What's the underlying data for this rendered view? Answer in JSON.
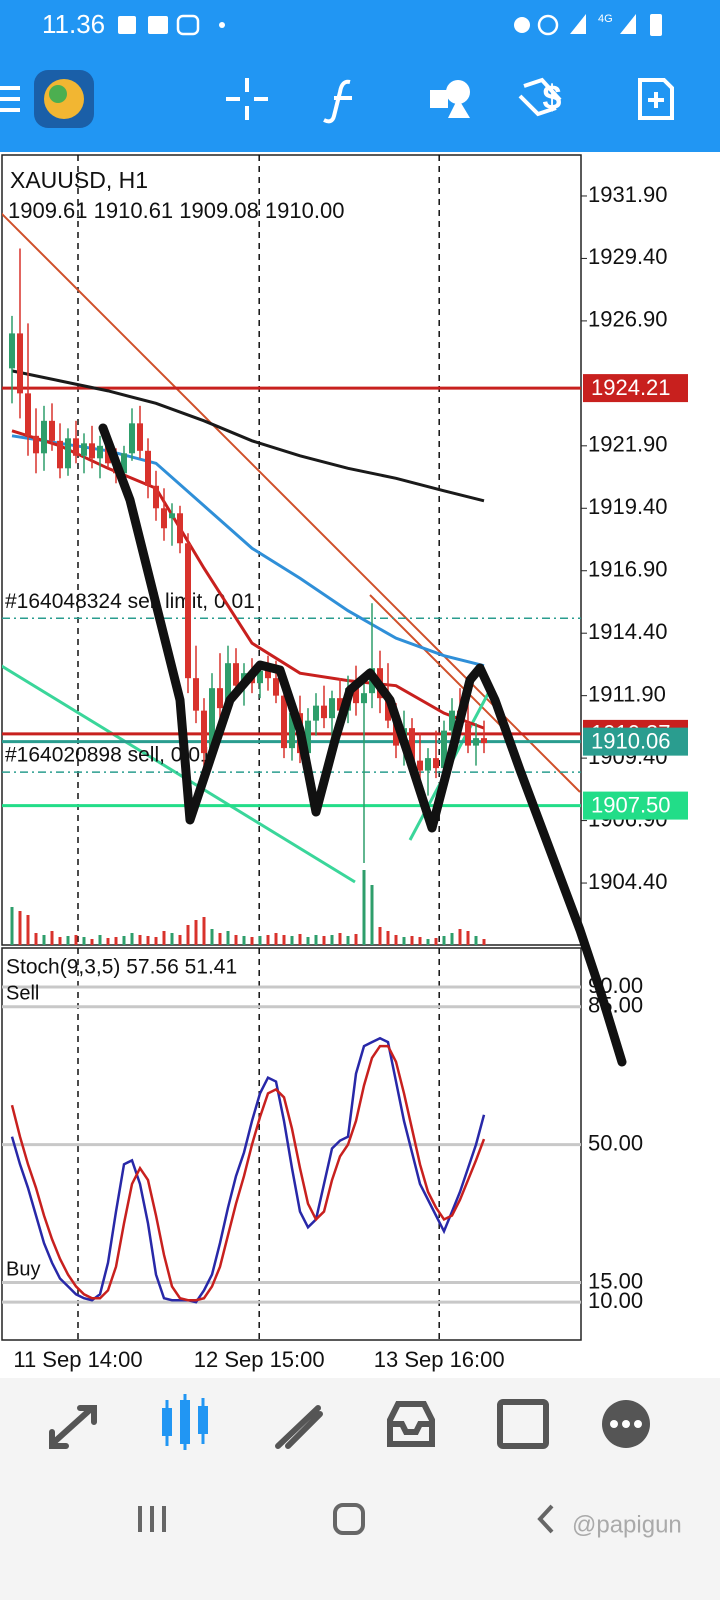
{
  "status_bar": {
    "time": "11.36",
    "network": "4G"
  },
  "chart": {
    "symbol": "XAUUSD, H1",
    "ohlc": "1909.61 1910.61 1909.08 1910.00",
    "up_color": "#2e9e6b",
    "down_color": "#d8322c",
    "candles": [
      [
        1925.0,
        1927.1,
        1923.6,
        1926.4
      ],
      [
        1926.4,
        1929.8,
        1923.0,
        1924.0
      ],
      [
        1924.0,
        1926.8,
        1921.5,
        1922.3
      ],
      [
        1922.3,
        1923.4,
        1920.8,
        1921.6
      ],
      [
        1921.6,
        1923.5,
        1920.9,
        1922.9
      ],
      [
        1922.9,
        1923.6,
        1921.7,
        1922.1
      ],
      [
        1922.1,
        1922.8,
        1920.6,
        1921.0
      ],
      [
        1921.0,
        1922.6,
        1920.7,
        1922.2
      ],
      [
        1922.2,
        1922.9,
        1921.2,
        1921.5
      ],
      [
        1921.5,
        1922.4,
        1920.8,
        1922.0
      ],
      [
        1922.0,
        1922.7,
        1921.0,
        1921.4
      ],
      [
        1921.4,
        1922.3,
        1920.6,
        1921.9
      ],
      [
        1921.9,
        1922.5,
        1921.0,
        1921.2
      ],
      [
        1921.2,
        1921.8,
        1920.4,
        1920.8
      ],
      [
        1920.8,
        1921.9,
        1920.3,
        1921.6
      ],
      [
        1921.6,
        1923.4,
        1921.3,
        1922.8
      ],
      [
        1922.8,
        1923.5,
        1921.4,
        1921.7
      ],
      [
        1921.7,
        1922.2,
        1919.8,
        1920.3
      ],
      [
        1920.3,
        1920.9,
        1918.9,
        1919.4
      ],
      [
        1919.4,
        1920.2,
        1918.1,
        1918.6
      ],
      [
        1919.0,
        1919.6,
        1917.9,
        1919.2
      ],
      [
        1919.2,
        1919.5,
        1917.6,
        1918.0
      ],
      [
        1918.0,
        1918.4,
        1912.0,
        1912.6
      ],
      [
        1912.6,
        1913.9,
        1910.8,
        1911.3
      ],
      [
        1911.3,
        1911.8,
        1908.4,
        1909.6
      ],
      [
        1909.6,
        1912.8,
        1909.2,
        1912.2
      ],
      [
        1912.2,
        1913.6,
        1910.9,
        1911.4
      ],
      [
        1911.4,
        1913.9,
        1911.0,
        1913.2
      ],
      [
        1913.2,
        1913.8,
        1911.9,
        1912.3
      ],
      [
        1912.3,
        1913.2,
        1911.5,
        1912.8
      ],
      [
        1912.8,
        1913.4,
        1912.0,
        1912.4
      ],
      [
        1912.4,
        1913.1,
        1911.8,
        1912.9
      ],
      [
        1912.9,
        1913.5,
        1912.1,
        1912.6
      ],
      [
        1912.6,
        1913.3,
        1911.6,
        1911.9
      ],
      [
        1911.9,
        1912.5,
        1909.4,
        1909.8
      ],
      [
        1909.8,
        1911.7,
        1909.3,
        1911.2
      ],
      [
        1911.2,
        1911.9,
        1909.2,
        1909.6
      ],
      [
        1909.6,
        1911.4,
        1909.1,
        1910.9
      ],
      [
        1910.9,
        1912.0,
        1910.3,
        1911.5
      ],
      [
        1911.5,
        1912.3,
        1910.6,
        1911.0
      ],
      [
        1911.0,
        1912.1,
        1910.1,
        1911.8
      ],
      [
        1911.8,
        1912.6,
        1910.9,
        1911.3
      ],
      [
        1911.3,
        1912.7,
        1910.8,
        1912.2
      ],
      [
        1912.2,
        1913.1,
        1911.1,
        1911.6
      ],
      [
        1911.6,
        1912.4,
        1905.2,
        1912.0
      ],
      [
        1912.0,
        1915.6,
        1911.4,
        1913.0
      ],
      [
        1913.0,
        1913.7,
        1911.2,
        1911.8
      ],
      [
        1911.8,
        1913.2,
        1910.6,
        1910.9
      ],
      [
        1910.9,
        1911.6,
        1909.4,
        1909.9
      ],
      [
        1909.9,
        1911.3,
        1909.1,
        1910.6
      ],
      [
        1910.6,
        1911.0,
        1908.8,
        1909.3
      ],
      [
        1909.3,
        1910.4,
        1908.2,
        1908.9
      ],
      [
        1908.9,
        1909.8,
        1907.9,
        1909.4
      ],
      [
        1909.4,
        1910.5,
        1908.6,
        1909.0
      ],
      [
        1909.0,
        1910.9,
        1908.8,
        1910.5
      ],
      [
        1910.5,
        1911.8,
        1910.0,
        1911.3
      ],
      [
        1911.3,
        1912.2,
        1910.4,
        1910.8
      ],
      [
        1910.8,
        1911.6,
        1909.6,
        1909.9
      ],
      [
        1909.9,
        1910.8,
        1909.1,
        1910.2
      ],
      [
        1910.2,
        1910.9,
        1909.6,
        1910.0
      ]
    ],
    "volumes": [
      38,
      34,
      30,
      12,
      10,
      14,
      8,
      9,
      10,
      8,
      6,
      10,
      7,
      8,
      9,
      12,
      10,
      9,
      8,
      14,
      12,
      10,
      20,
      25,
      28,
      16,
      12,
      14,
      10,
      9,
      8,
      9,
      10,
      12,
      10,
      9,
      11,
      8,
      10,
      9,
      10,
      12,
      9,
      11,
      75,
      60,
      18,
      14,
      10,
      8,
      9,
      8,
      6,
      7,
      9,
      12,
      16,
      14,
      9,
      6
    ],
    "moving_averages": [
      {
        "color": "#1a1a1a",
        "x": [
          0,
          6,
          12,
          18,
          24,
          30,
          36,
          42,
          48,
          54,
          59
        ],
        "values": [
          1924.9,
          1924.5,
          1924.1,
          1923.6,
          1922.9,
          1922.1,
          1921.5,
          1921.0,
          1920.6,
          1920.1,
          1919.7
        ]
      },
      {
        "color": "#2f8fd8",
        "x": [
          0,
          6,
          12,
          18,
          24,
          30,
          36,
          42,
          48,
          54,
          59
        ],
        "values": [
          1922.3,
          1922.0,
          1921.7,
          1921.2,
          1919.5,
          1917.8,
          1916.6,
          1915.3,
          1914.2,
          1913.5,
          1913.1
        ]
      },
      {
        "color": "#c8201e",
        "x": [
          0,
          6,
          12,
          18,
          24,
          30,
          36,
          42,
          48,
          54,
          59
        ],
        "values": [
          1922.5,
          1921.9,
          1921.0,
          1920.2,
          1917.0,
          1914.0,
          1912.8,
          1912.5,
          1912.3,
          1911.2,
          1910.6
        ]
      }
    ],
    "ylim": [
      1901.92,
      1933.54
    ],
    "yticks": [
      {
        "value": 1931.9,
        "label": "1931.90"
      },
      {
        "value": 1929.4,
        "label": "1929.40"
      },
      {
        "value": 1926.9,
        "label": "1926.90"
      },
      {
        "value": 1921.9,
        "label": "1921.90"
      },
      {
        "value": 1919.4,
        "label": "1919.40"
      },
      {
        "value": 1916.9,
        "label": "1916.90"
      },
      {
        "value": 1914.4,
        "label": "1914.40"
      },
      {
        "value": 1911.9,
        "label": "1911.90"
      },
      {
        "value": 1909.4,
        "label": "1909.40"
      },
      {
        "value": 1906.9,
        "label": "1906.90"
      },
      {
        "value": 1904.4,
        "label": "1904.40"
      }
    ],
    "price_lines": [
      {
        "value": 1924.21,
        "label": "1924.21",
        "color": "#c8201e"
      },
      {
        "value": 1910.37,
        "label": "1910.37",
        "color": "#c8201e"
      },
      {
        "value": 1910.06,
        "label": "1910.06",
        "color": "#2a9d8f"
      },
      {
        "value": 1907.5,
        "label": "1907.50",
        "color": "#22dd88"
      }
    ],
    "orders": [
      {
        "value": 1915.0,
        "label": "#164048324 sell limit, 0.01"
      },
      {
        "value": 1908.84,
        "label": "#164020898 sell, 0.01"
      }
    ],
    "xticks": [
      {
        "value": 8.25,
        "label": "11 Sep 14:00"
      },
      {
        "value": 30.9,
        "label": "12 Sep 15:00"
      },
      {
        "value": 53.4,
        "label": "13 Sep 16:00"
      }
    ]
  },
  "stochastic": {
    "label": "Stoch(9,3,5) 57.56 51.41",
    "sell_label": "Sell",
    "buy_label": "Buy",
    "ylim": [
      0.4,
      99.9
    ],
    "yticks": [
      {
        "value": 90,
        "label": "90.00"
      },
      {
        "value": 85,
        "label": "85.00"
      },
      {
        "value": 50,
        "label": "50.00"
      },
      {
        "value": 15,
        "label": "15.00"
      },
      {
        "value": 10,
        "label": "10.00"
      }
    ],
    "k": {
      "color": "#2828a8",
      "values": [
        52,
        45,
        39,
        32,
        25,
        20,
        16,
        14,
        12,
        11,
        10.5,
        12,
        20,
        33,
        45,
        46,
        40,
        30,
        17,
        11,
        10.5,
        10.5,
        10.5,
        10,
        13,
        17,
        25,
        34,
        42,
        48,
        56,
        63,
        67,
        66,
        56,
        44,
        33,
        29,
        31,
        40,
        49,
        51,
        52,
        68,
        75,
        76,
        77,
        76,
        66,
        56,
        48,
        40,
        36,
        32,
        28,
        33,
        38,
        44,
        50,
        57.56
      ]
    },
    "d": {
      "color": "#c8201e",
      "values": [
        60,
        52,
        45,
        39,
        32,
        26,
        21,
        17,
        14,
        12,
        11,
        11,
        13,
        19,
        30,
        40,
        44,
        41,
        32,
        22,
        14,
        11,
        10.5,
        10.5,
        11,
        14,
        19,
        27,
        35,
        42,
        50,
        57,
        63,
        64,
        62,
        54,
        44,
        35,
        31,
        33,
        41,
        47,
        50,
        56,
        65,
        72,
        75,
        75,
        71,
        63,
        54,
        45,
        38,
        34,
        31,
        32,
        36,
        41,
        46,
        51.41
      ]
    }
  },
  "watermark": "@papigun"
}
